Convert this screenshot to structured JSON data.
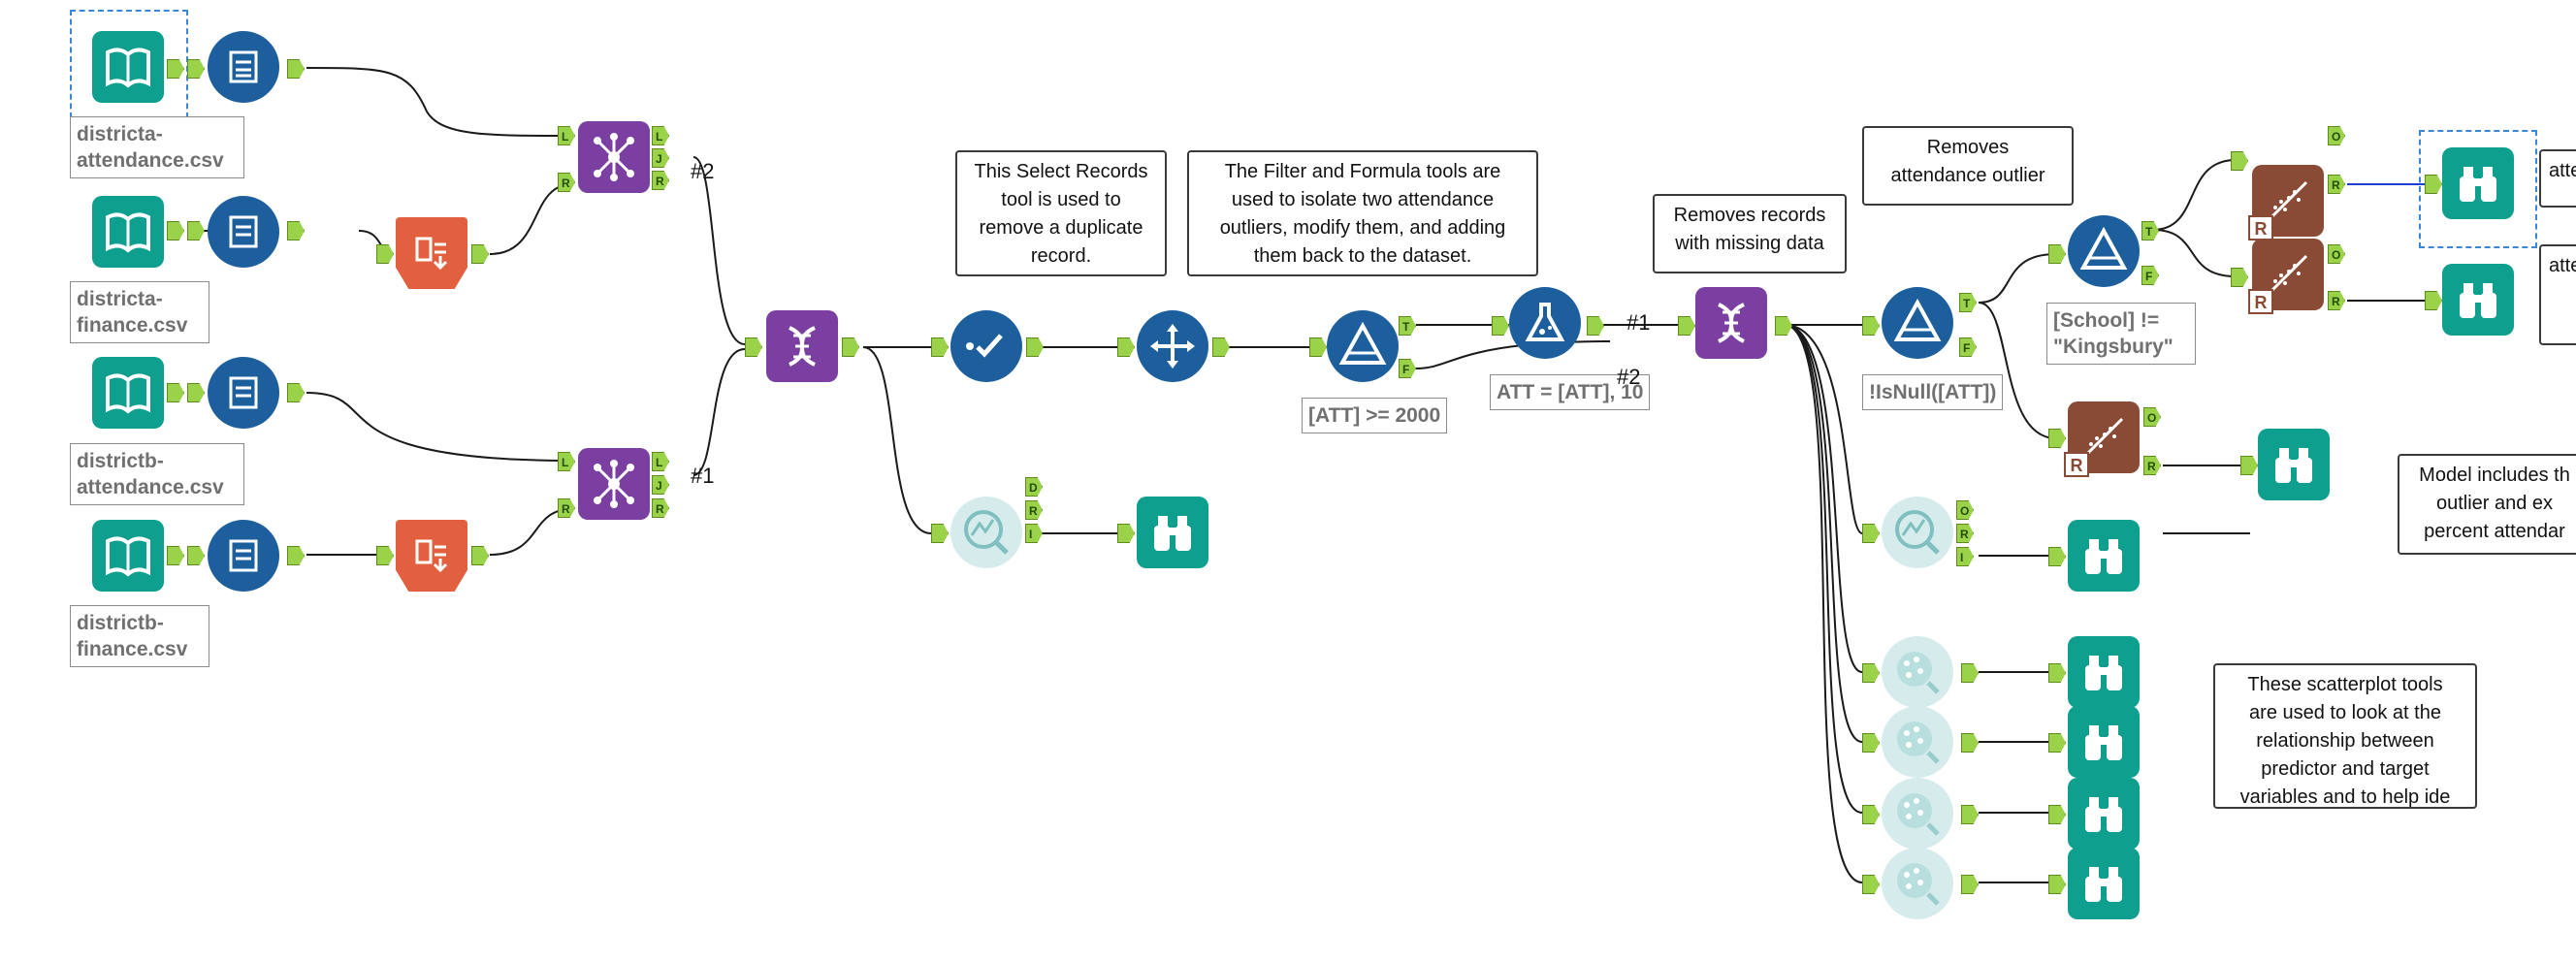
{
  "canvas": {
    "background": "#ffffff"
  },
  "colors": {
    "input": "#0f9f8f",
    "blue_tool": "#1d5f9d",
    "join": "#7a3fa0",
    "transpose": "#e2603f",
    "r_model": "#8a4b36",
    "anchor": "#9ad24a",
    "selected_wire": "#1f3fd1"
  },
  "inputs": [
    {
      "label_line1": "districta-",
      "label_line2": "attendance.csv"
    },
    {
      "label_line1": "districta-",
      "label_line2": "finance.csv"
    },
    {
      "label_line1": "districtb-",
      "label_line2": "attendance.csv"
    },
    {
      "label_line1": "districtb-",
      "label_line2": "finance.csv"
    }
  ],
  "anchors": {
    "L": "L",
    "J": "J",
    "R": "R",
    "T": "T",
    "F": "F",
    "D": "D",
    "I": "I",
    "O": "O"
  },
  "wire_hashes": {
    "join_a": "#2",
    "join_b": "#1",
    "formula_out": "#1",
    "formula_out2": "#2"
  },
  "filters": {
    "att_filter": "[ATT] >= 2000",
    "formula": "ATT = [ATT], 10",
    "isnull": "!IsNull([ATT])",
    "school": "[School] != \"Kingsbury\""
  },
  "notes": {
    "select_records": "This Select Records\ntool is used to\nremove a duplicate\nrecord.",
    "filter_formula": "The Filter and Formula tools are\nused to isolate two attendance\noutliers, modify them, and adding\nthem back to the dataset.",
    "missing_data": "Removes records\nwith missing data",
    "outlier": "Removes\nattendance outlier",
    "model": "Model includes th\noutlier and ex\npercent attendar",
    "scatter": "These scatterplot tools\nare used to look at the\nrelationship between\npredictor and target\nvariables and to help ide",
    "right_top": "atte",
    "right_mid": "atte"
  }
}
